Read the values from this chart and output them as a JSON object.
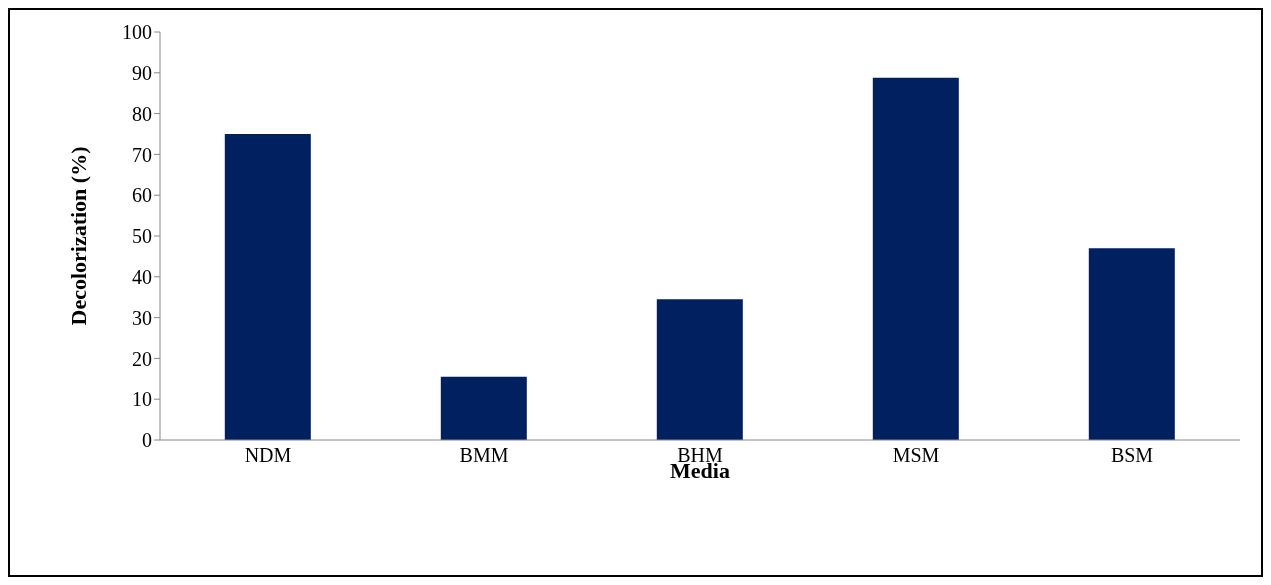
{
  "chart_data": {
    "type": "bar",
    "xlabel": "Media",
    "ylabel": "Decolorization (%)",
    "categories": [
      "NDM",
      "BMM",
      "BHM",
      "MSM",
      "BSM"
    ],
    "values": [
      75,
      15.5,
      34.5,
      88.8,
      47
    ],
    "color": "#002060",
    "ylim": [
      0,
      100
    ],
    "yticks": [
      0,
      10,
      20,
      30,
      40,
      50,
      60,
      70,
      80,
      90,
      100
    ],
    "grid": false
  }
}
